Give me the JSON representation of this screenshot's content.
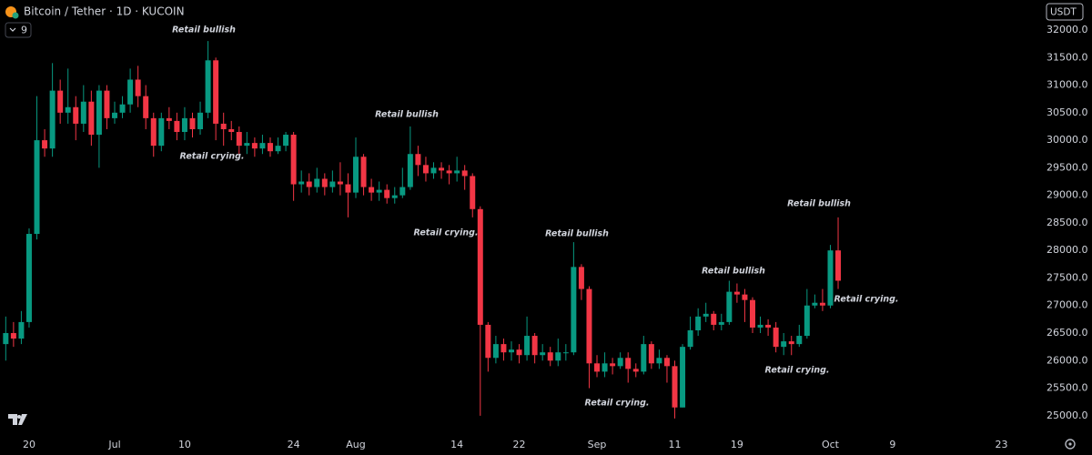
{
  "chart_data": {
    "type": "candlestick",
    "title": "Bitcoin / Tether · 1D · KUCOIN",
    "indicator_count": "9",
    "currency": "USDT",
    "up_color": "#089981",
    "down_color": "#f23645",
    "x": [
      0,
      1,
      2,
      3,
      4,
      5,
      6,
      7,
      8,
      9,
      10,
      11,
      12,
      13,
      14,
      15,
      16,
      17,
      18,
      19,
      20,
      21,
      22,
      23,
      24,
      25,
      26,
      27,
      28,
      29,
      30,
      31,
      32,
      33,
      34,
      35,
      36,
      37,
      38,
      39,
      40,
      41,
      42,
      43,
      44,
      45,
      46,
      47,
      48,
      49,
      50,
      51,
      52,
      53,
      54,
      55,
      56,
      57,
      58,
      59,
      60,
      61,
      62,
      63,
      64,
      65,
      66,
      67,
      68,
      69,
      70,
      71,
      72,
      73,
      74,
      75,
      76,
      77,
      78,
      79,
      80,
      81,
      82,
      83,
      84,
      85,
      86,
      87,
      88,
      89,
      90,
      91,
      92,
      93,
      94,
      95,
      96,
      97,
      98,
      99,
      100,
      101,
      102,
      103,
      104,
      105,
      106,
      107
    ],
    "open": [
      26300,
      26500,
      26400,
      26700,
      28300,
      30000,
      29850,
      30900,
      30500,
      30600,
      30300,
      30700,
      30100,
      30900,
      30400,
      30500,
      30650,
      31100,
      30800,
      30400,
      29900,
      30400,
      30350,
      30150,
      30400,
      30200,
      30500,
      31450,
      30300,
      30200,
      30150,
      29900,
      29950,
      29850,
      29950,
      29800,
      29900,
      30100,
      29200,
      29250,
      29150,
      29300,
      29150,
      29250,
      29200,
      29050,
      29700,
      29150,
      29050,
      29100,
      28950,
      29000,
      29150,
      29750,
      29550,
      29400,
      29500,
      29450,
      29400,
      29450,
      29350,
      28750,
      26650,
      26050,
      26300,
      26150,
      26200,
      26100,
      26450,
      26100,
      26150,
      26000,
      26150,
      26150,
      27700,
      27300,
      25950,
      25800,
      25950,
      25900,
      26050,
      25850,
      25800,
      26300,
      25950,
      26050,
      25900,
      25150,
      26250,
      26550,
      26800,
      26850,
      26650,
      26700,
      27250,
      27200,
      27100,
      26600,
      26650,
      26600,
      26250,
      26350,
      26300,
      26450,
      27000,
      27050,
      27000,
      28000
    ],
    "high": [
      26800,
      26700,
      26900,
      28400,
      30800,
      30200,
      31400,
      31100,
      31300,
      30800,
      31000,
      30900,
      31000,
      31000,
      30700,
      30800,
      31300,
      31350,
      31000,
      30500,
      30500,
      30600,
      30500,
      30600,
      30500,
      30700,
      31800,
      31500,
      30500,
      30350,
      30250,
      30150,
      30050,
      30100,
      30050,
      30050,
      30150,
      30150,
      29450,
      29400,
      29500,
      29400,
      29450,
      29600,
      29400,
      30050,
      29750,
      29300,
      29250,
      29200,
      29150,
      29500,
      30250,
      29900,
      29700,
      29600,
      29600,
      29550,
      29700,
      29550,
      29400,
      28800,
      26700,
      26450,
      26400,
      26350,
      26300,
      26800,
      26500,
      26300,
      26250,
      26400,
      26300,
      28150,
      27750,
      27350,
      26100,
      26150,
      26050,
      26150,
      26150,
      25950,
      26450,
      26350,
      26200,
      26100,
      26000,
      26300,
      26800,
      26950,
      27050,
      26900,
      26850,
      27450,
      27400,
      27300,
      27150,
      26800,
      26750,
      26700,
      26500,
      26450,
      26650,
      27300,
      27200,
      27300,
      28100,
      28600
    ],
    "low": [
      26000,
      26250,
      26300,
      26600,
      28200,
      29700,
      29700,
      30300,
      30300,
      30000,
      30150,
      29900,
      29500,
      30200,
      30300,
      30400,
      30500,
      30600,
      30200,
      29700,
      29800,
      30200,
      30000,
      30000,
      30050,
      30100,
      30400,
      30000,
      29900,
      30000,
      29750,
      29750,
      29700,
      29750,
      29700,
      29750,
      29800,
      28900,
      29050,
      29000,
      29050,
      29000,
      29050,
      29000,
      28600,
      28950,
      29000,
      28900,
      28900,
      28850,
      28850,
      28950,
      29100,
      29350,
      29250,
      29300,
      29300,
      29200,
      29250,
      29100,
      28600,
      25000,
      25800,
      25950,
      26000,
      26000,
      25950,
      26000,
      25950,
      26000,
      25900,
      25900,
      26000,
      26100,
      27100,
      25500,
      25700,
      25700,
      25750,
      25850,
      25600,
      25700,
      25750,
      25850,
      25850,
      25600,
      24950,
      25150,
      26200,
      26450,
      26700,
      26550,
      26550,
      26650,
      27050,
      26700,
      26500,
      26500,
      26450,
      26150,
      26100,
      26100,
      26250,
      26400,
      26950,
      26900,
      26950,
      27300
    ],
    "close": [
      26500,
      26400,
      26700,
      28300,
      30000,
      29850,
      30900,
      30500,
      30600,
      30300,
      30700,
      30100,
      30900,
      30400,
      30500,
      30650,
      31100,
      30800,
      30400,
      29900,
      30400,
      30350,
      30150,
      30400,
      30200,
      30500,
      31450,
      30300,
      30200,
      30150,
      29900,
      29950,
      29850,
      29950,
      29800,
      29900,
      30100,
      29200,
      29250,
      29150,
      29300,
      29150,
      29250,
      29200,
      29050,
      29700,
      29150,
      29050,
      29100,
      28950,
      29000,
      29150,
      29750,
      29550,
      29400,
      29500,
      29450,
      29400,
      29450,
      29350,
      28750,
      26650,
      26050,
      26300,
      26150,
      26200,
      26100,
      26450,
      26100,
      26150,
      26000,
      26150,
      26150,
      27700,
      27300,
      25950,
      25800,
      25950,
      25900,
      26050,
      25850,
      25800,
      26300,
      25950,
      26050,
      25900,
      25150,
      26250,
      26550,
      26800,
      26850,
      26650,
      26700,
      27250,
      27200,
      27100,
      26600,
      26650,
      26600,
      26250,
      26350,
      26300,
      26450,
      27000,
      27050,
      27000,
      28000,
      27450
    ],
    "xlim": [
      -0.74,
      133.2
    ],
    "xticks": [
      {
        "value": 3,
        "label": "20"
      },
      {
        "value": 14,
        "label": "Jul"
      },
      {
        "value": 23,
        "label": "10"
      },
      {
        "value": 37,
        "label": "24"
      },
      {
        "value": 45,
        "label": "Aug"
      },
      {
        "value": 58,
        "label": "14"
      },
      {
        "value": 66,
        "label": "22"
      },
      {
        "value": 76,
        "label": "Sep"
      },
      {
        "value": 86,
        "label": "11"
      },
      {
        "value": 94,
        "label": "19"
      },
      {
        "value": 106,
        "label": "Oct"
      },
      {
        "value": 114,
        "label": "9"
      },
      {
        "value": 128,
        "label": "23"
      }
    ],
    "ylim": [
      24700,
      32545
    ],
    "yticks": [
      {
        "value": 25000,
        "label": "25000.0"
      },
      {
        "value": 25500,
        "label": "25500.0"
      },
      {
        "value": 26000,
        "label": "26000.0"
      },
      {
        "value": 26500,
        "label": "26500.0"
      },
      {
        "value": 27000,
        "label": "27000.0"
      },
      {
        "value": 27500,
        "label": "27500.0"
      },
      {
        "value": 28000,
        "label": "28000.0"
      },
      {
        "value": 28500,
        "label": "28500.0"
      },
      {
        "value": 29000,
        "label": "29000.0"
      },
      {
        "value": 29500,
        "label": "29500.0"
      },
      {
        "value": 30000,
        "label": "30000.0"
      },
      {
        "value": 30500,
        "label": "30500.0"
      },
      {
        "value": 31000,
        "label": "31000.0"
      },
      {
        "value": 31500,
        "label": "31500.0"
      },
      {
        "value": 32000,
        "label": "32000.0"
      }
    ],
    "grid": false,
    "annotations": [
      "Retail bullish",
      "Retail crying.",
      "Retail bullish",
      "Retail crying.",
      "Retail bullish",
      "Retail crying.",
      "Retail bullish",
      "Retail crying.",
      "Retail bullish",
      "Retail crying."
    ]
  }
}
